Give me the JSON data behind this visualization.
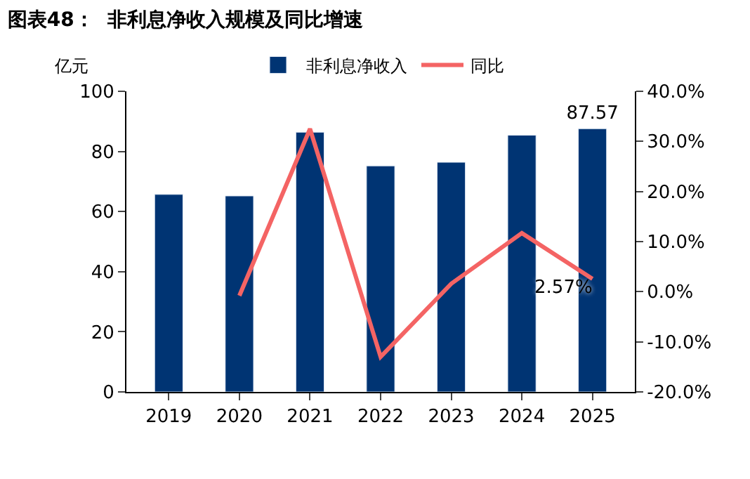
{
  "chart_data": {
    "type": "bar",
    "title": "图表48：  非利息净收入规模及同比增速",
    "ylabel": "亿元",
    "categories": [
      "2019",
      "2020",
      "2021",
      "2022",
      "2023",
      "2024",
      "2025"
    ],
    "series": [
      {
        "name": "非利息净收入",
        "color": "#003473",
        "values": [
          65.7,
          65.2,
          86.4,
          75.2,
          76.4,
          85.4,
          87.57
        ],
        "value_labels": [
          null,
          null,
          null,
          null,
          null,
          null,
          "87.57"
        ]
      },
      {
        "name": "同比",
        "type": "line",
        "axis": "y2",
        "color": "#f46464",
        "values": [
          null,
          -0.8,
          32.5,
          -13.0,
          1.6,
          11.7,
          2.57
        ],
        "value_labels": [
          null,
          null,
          null,
          null,
          null,
          null,
          "2.57%"
        ]
      }
    ],
    "ylim": [
      0,
      100
    ],
    "yticks": [
      0,
      20,
      40,
      60,
      80,
      100
    ],
    "y2lim": [
      -20,
      40
    ],
    "y2ticks": [
      {
        "value": -20,
        "label": "-20.0%"
      },
      {
        "value": -10,
        "label": "-10.0%"
      },
      {
        "value": 0,
        "label": "0.0%"
      },
      {
        "value": 10,
        "label": "10.0%"
      },
      {
        "value": 20,
        "label": "20.0%"
      },
      {
        "value": 30,
        "label": "30.0%"
      },
      {
        "value": 40,
        "label": "40.0%"
      }
    ],
    "legend": "top",
    "marker": "none",
    "line_style": "solid"
  }
}
